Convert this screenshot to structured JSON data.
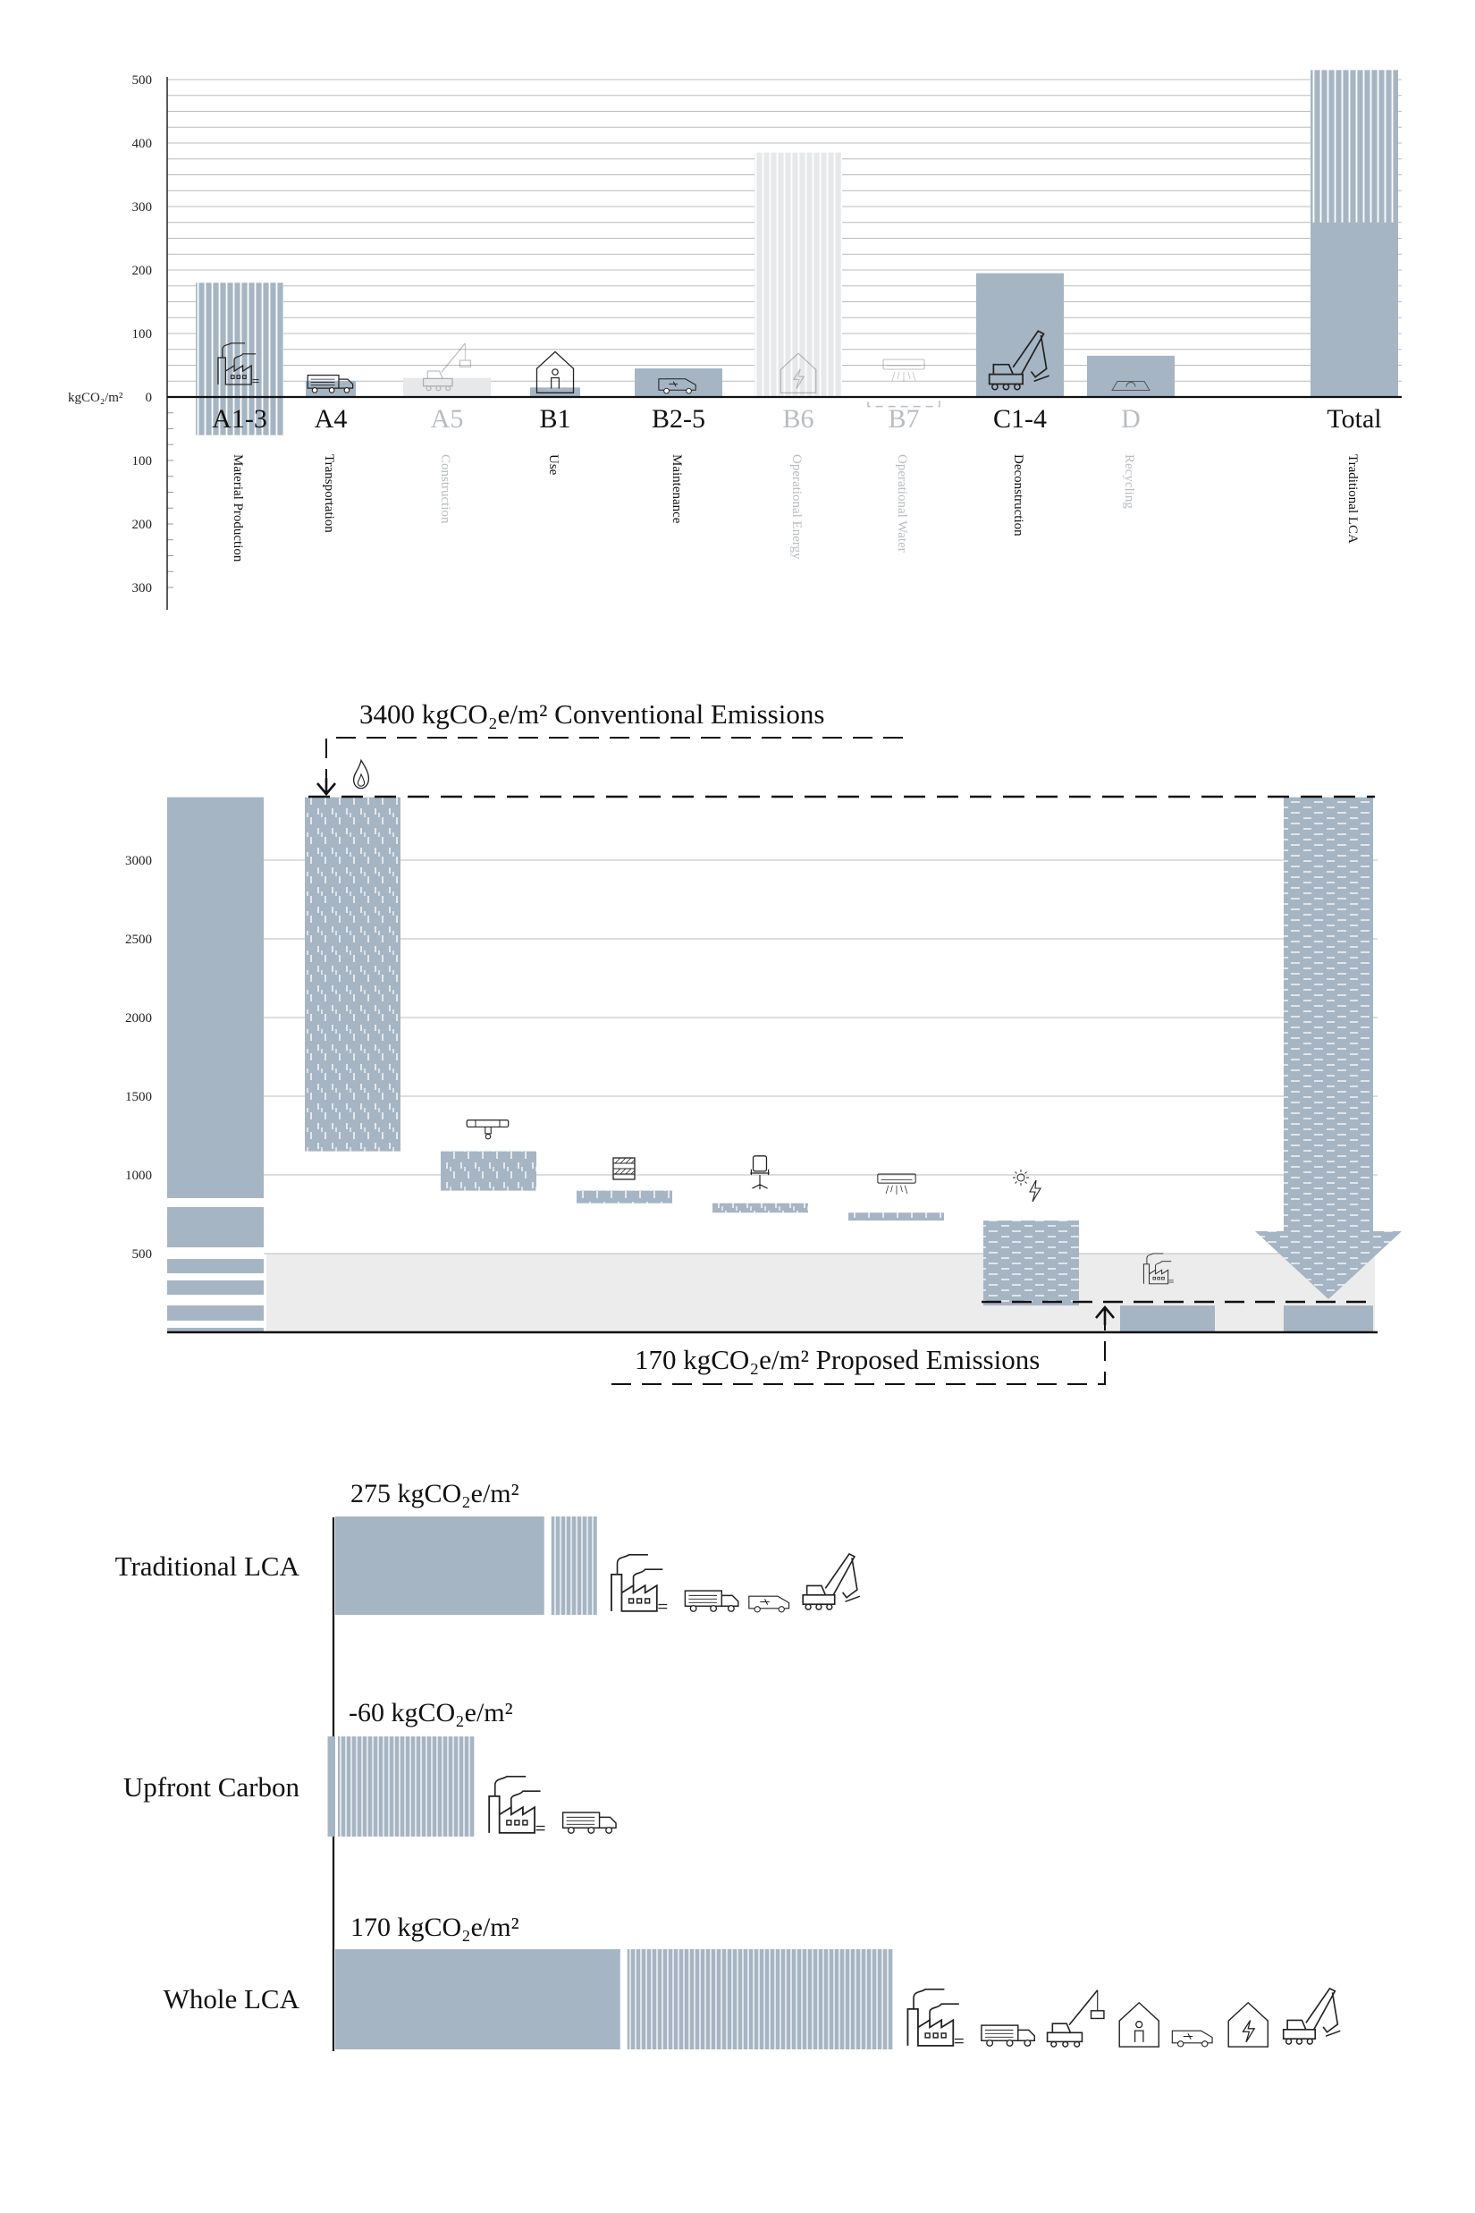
{
  "chart_data": [
    {
      "type": "bar",
      "ylabel": "kgCO₂/m²",
      "y_ticks_positive": [
        500,
        400,
        300,
        200,
        100,
        0
      ],
      "y_ticks_negative": [
        100,
        200,
        300
      ],
      "ylim": [
        -330,
        510
      ],
      "categories": [
        {
          "code": "A1-3",
          "name": "Material Production",
          "faded": false
        },
        {
          "code": "A4",
          "name": "Transportation",
          "faded": false
        },
        {
          "code": "A5",
          "name": "Construction",
          "faded": true
        },
        {
          "code": "B1",
          "name": "Use",
          "faded": false
        },
        {
          "code": "B2-5",
          "name": "Maintenance",
          "faded": false
        },
        {
          "code": "B6",
          "name": "Operational Energy",
          "faded": true
        },
        {
          "code": "B7",
          "name": "Operational Water",
          "faded": true
        },
        {
          "code": "C1-4",
          "name": "Deconstruction",
          "faded": false
        },
        {
          "code": "D",
          "name": "Recycling",
          "faded": true
        },
        {
          "code": "Total",
          "name": "Traditional LCA",
          "faded": false
        }
      ],
      "bars": [
        {
          "code": "A1-3",
          "from": -60,
          "to": 180,
          "fill": "hatched"
        },
        {
          "code": "A4",
          "from": 0,
          "to": 25,
          "fill": "solid"
        },
        {
          "code": "A5",
          "from": 0,
          "to": 30,
          "fill": "faded"
        },
        {
          "code": "B1",
          "from": 0,
          "to": 15,
          "fill": "solid"
        },
        {
          "code": "B2-5",
          "from": 0,
          "to": 45,
          "fill": "solid"
        },
        {
          "code": "B6",
          "from": 0,
          "to": 385,
          "fill": "faded-hatched"
        },
        {
          "code": "B7",
          "from": -15,
          "to": 0,
          "fill": "dashed-outline"
        },
        {
          "code": "C1-4",
          "from": 0,
          "to": 195,
          "fill": "solid"
        },
        {
          "code": "D",
          "from": 0,
          "to": 65,
          "fill": "solid"
        },
        {
          "code": "Total",
          "from": 0,
          "to": 275,
          "fill": "solid"
        },
        {
          "code": "Total",
          "from": 275,
          "to": 515,
          "fill": "hatched"
        }
      ]
    },
    {
      "type": "bar",
      "y_ticks": [
        3000,
        2500,
        2000,
        1500,
        1000,
        500
      ],
      "ylim": [
        0,
        3400
      ],
      "annotations": [
        {
          "value": 3400,
          "unit": "kgCO₂e/m²",
          "text": "Conventional Emissions"
        },
        {
          "value": 170,
          "unit": "kgCO₂e/m²",
          "text": "Proposed Emissions"
        }
      ],
      "bars": [
        {
          "name": "baseline",
          "from": 0,
          "to": 3400,
          "fill": "solid-banded"
        },
        {
          "name": "step-1",
          "icon": "flame-icon",
          "from": 1150,
          "to": 3400,
          "fill": "hatched"
        },
        {
          "name": "step-2",
          "icon": "pipe-icon",
          "from": 900,
          "to": 1150,
          "fill": "hatched"
        },
        {
          "name": "step-3",
          "icon": "panel-icon",
          "from": 820,
          "to": 900,
          "fill": "hatched"
        },
        {
          "name": "step-4",
          "icon": "chair-icon",
          "from": 760,
          "to": 820,
          "fill": "hatched"
        },
        {
          "name": "step-5",
          "icon": "aircon-icon",
          "from": 710,
          "to": 760,
          "fill": "hatched"
        },
        {
          "name": "step-6",
          "icon": "solar-energy-icon",
          "from": 170,
          "to": 710,
          "fill": "hatched"
        },
        {
          "name": "step-7",
          "icon": "factory-icon",
          "from": 0,
          "to": 170,
          "fill": "solid"
        },
        {
          "name": "total",
          "from": 0,
          "to": 3400,
          "fill": "hatched-arrow"
        }
      ],
      "reference_band": {
        "from": 0,
        "to": 450
      }
    },
    {
      "type": "bar",
      "orientation": "horizontal",
      "rows": [
        {
          "label": "Traditional LCA",
          "value_text": "275 kgCO₂e/m²",
          "solid": 275,
          "hatched": 60,
          "icons": [
            "factory-icon",
            "truck-icon",
            "van-icon",
            "excavator-icon"
          ]
        },
        {
          "label": "Upfront Carbon",
          "value_text": "-60 kgCO₂e/m²",
          "solid": -10,
          "hatched": 180,
          "icons": [
            "factory-icon",
            "truck-icon"
          ]
        },
        {
          "label": "Whole LCA",
          "value_text": "170 kgCO₂e/m²",
          "solid": 375,
          "hatched": 350,
          "icons": [
            "factory-icon",
            "truck-icon",
            "crane-icon",
            "house-user-icon",
            "van-icon",
            "house-energy-icon",
            "excavator-icon"
          ]
        }
      ]
    }
  ],
  "colors": {
    "bar": "#a6b5c3",
    "faded_bar": "#e6e8ea",
    "faded_text": "#b9bdc1",
    "gridline": "#bcbcbc",
    "reference_band": "#ececec"
  }
}
